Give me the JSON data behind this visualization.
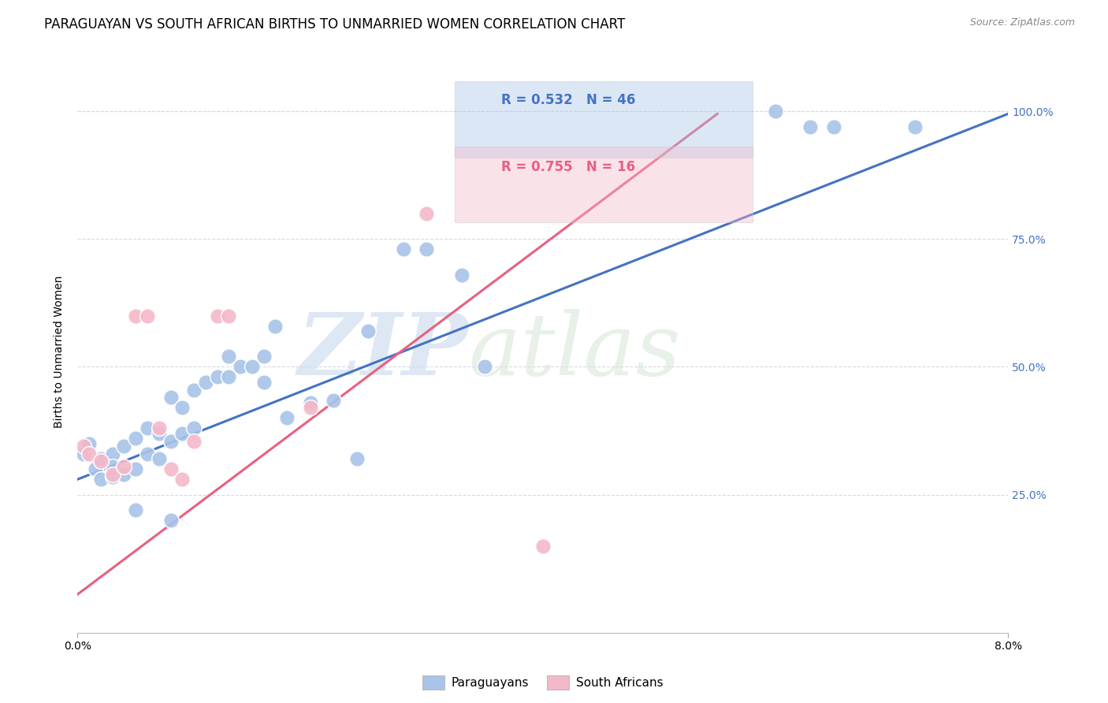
{
  "title": "PARAGUAYAN VS SOUTH AFRICAN BIRTHS TO UNMARRIED WOMEN CORRELATION CHART",
  "source": "Source: ZipAtlas.com",
  "ylabel": "Births to Unmarried Women",
  "xlim": [
    0.0,
    0.08
  ],
  "ylim": [
    -0.02,
    1.08
  ],
  "yticks": [
    0.0,
    0.25,
    0.5,
    0.75,
    1.0
  ],
  "ytick_labels": [
    "",
    "25.0%",
    "50.0%",
    "75.0%",
    "100.0%"
  ],
  "xtick_labels": [
    "0.0%",
    "8.0%"
  ],
  "xticks": [
    0.0,
    0.08
  ],
  "watermark_zip": "ZIP",
  "watermark_atlas": "atlas",
  "legend_blue_r": "R = 0.532",
  "legend_blue_n": "N = 46",
  "legend_pink_r": "R = 0.755",
  "legend_pink_n": "N = 16",
  "paraguayan_color": "#a8c4e8",
  "south_african_color": "#f4b8c8",
  "blue_line_color": "#4472c4",
  "pink_line_color": "#e86080",
  "background_color": "#ffffff",
  "grid_color": "#d8d8e8",
  "title_fontsize": 12,
  "source_fontsize": 9,
  "axis_label_fontsize": 10,
  "tick_fontsize": 10,
  "legend_fontsize": 12,
  "paraguayan_x": [
    0.0005,
    0.001,
    0.0015,
    0.002,
    0.002,
    0.003,
    0.003,
    0.003,
    0.004,
    0.004,
    0.005,
    0.005,
    0.005,
    0.006,
    0.006,
    0.007,
    0.007,
    0.008,
    0.008,
    0.009,
    0.009,
    0.01,
    0.01,
    0.011,
    0.012,
    0.013,
    0.013,
    0.014,
    0.015,
    0.016,
    0.016,
    0.017,
    0.018,
    0.02,
    0.022,
    0.024,
    0.025,
    0.028,
    0.03,
    0.033,
    0.035,
    0.06,
    0.063,
    0.065,
    0.072,
    0.008
  ],
  "paraguayan_y": [
    0.33,
    0.35,
    0.3,
    0.32,
    0.28,
    0.33,
    0.305,
    0.285,
    0.345,
    0.29,
    0.36,
    0.3,
    0.22,
    0.38,
    0.33,
    0.37,
    0.32,
    0.44,
    0.355,
    0.42,
    0.37,
    0.455,
    0.38,
    0.47,
    0.48,
    0.52,
    0.48,
    0.5,
    0.5,
    0.47,
    0.52,
    0.58,
    0.4,
    0.43,
    0.435,
    0.32,
    0.57,
    0.73,
    0.73,
    0.68,
    0.5,
    1.0,
    0.97,
    0.97,
    0.97,
    0.2
  ],
  "south_african_x": [
    0.0005,
    0.001,
    0.002,
    0.003,
    0.004,
    0.005,
    0.006,
    0.007,
    0.008,
    0.009,
    0.01,
    0.012,
    0.013,
    0.02,
    0.03,
    0.04
  ],
  "south_african_y": [
    0.345,
    0.33,
    0.315,
    0.29,
    0.305,
    0.6,
    0.6,
    0.38,
    0.3,
    0.28,
    0.355,
    0.6,
    0.6,
    0.42,
    0.8,
    0.15
  ],
  "blue_trendline": [
    0.0,
    0.08,
    0.28,
    0.995
  ],
  "pink_trendline": [
    0.0,
    0.055,
    0.055,
    0.995
  ]
}
